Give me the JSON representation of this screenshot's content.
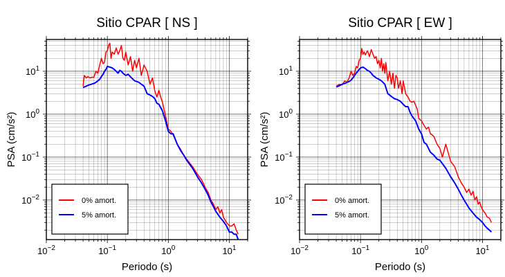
{
  "chart_data": [
    {
      "type": "line",
      "title": "Sitio CPAR [ NS ]",
      "xlabel": "Periodo (s)",
      "ylabel": "PSA (cm/s²)",
      "xscale": "log",
      "yscale": "log",
      "xlim": [
        0.01,
        20
      ],
      "ylim": [
        0.0012,
        55
      ],
      "grid": true,
      "legend_position": "bottom-left",
      "xticks": [
        {
          "value": 0.01,
          "base": "10",
          "exp": "−2"
        },
        {
          "value": 0.1,
          "base": "10",
          "exp": "−1"
        },
        {
          "value": 1,
          "base": "10",
          "exp": "0"
        },
        {
          "value": 10,
          "base": "10",
          "exp": "1"
        }
      ],
      "yticks": [
        {
          "value": 0.01,
          "base": "10",
          "exp": "−2"
        },
        {
          "value": 0.1,
          "base": "10",
          "exp": "−1"
        },
        {
          "value": 1,
          "base": "10",
          "exp": "0"
        },
        {
          "value": 10,
          "base": "10",
          "exp": "1"
        }
      ],
      "series": [
        {
          "name": "0% amort.",
          "color": "#ff0000",
          "x": [
            0.04,
            0.042,
            0.045,
            0.048,
            0.052,
            0.056,
            0.06,
            0.065,
            0.07,
            0.075,
            0.08,
            0.085,
            0.09,
            0.095,
            0.1,
            0.105,
            0.11,
            0.115,
            0.12,
            0.13,
            0.14,
            0.15,
            0.16,
            0.17,
            0.18,
            0.19,
            0.2,
            0.22,
            0.24,
            0.26,
            0.28,
            0.3,
            0.33,
            0.36,
            0.4,
            0.45,
            0.5,
            0.55,
            0.6,
            0.65,
            0.7,
            0.75,
            0.8,
            0.85,
            0.9,
            1.0,
            1.1,
            1.2,
            1.4,
            1.6,
            1.8,
            2.0,
            2.5,
            3.0,
            3.5,
            4.0,
            4.5,
            5.0,
            5.5,
            6.0,
            6.5,
            7.0,
            7.5,
            8.0,
            9.0,
            10.0,
            11.0,
            12.0,
            13.0,
            14.0
          ],
          "y": [
            4.5,
            8,
            7,
            7.5,
            7,
            7.3,
            7.2,
            10,
            9,
            14,
            20,
            15,
            16,
            28,
            30,
            40,
            45,
            20,
            28,
            25,
            35,
            25,
            30,
            40,
            20,
            18,
            28,
            14,
            22,
            10,
            18,
            12,
            20,
            8,
            14,
            10,
            5,
            7,
            3.5,
            2.5,
            3.6,
            2.5,
            1.9,
            1.3,
            0.9,
            0.45,
            0.4,
            0.33,
            0.2,
            0.15,
            0.11,
            0.09,
            0.06,
            0.04,
            0.03,
            0.02,
            0.015,
            0.01,
            0.008,
            0.006,
            0.007,
            0.005,
            0.006,
            0.004,
            0.003,
            0.0025,
            0.0025,
            0.0028,
            0.002,
            0.0016
          ]
        },
        {
          "name": "5% amort.",
          "color": "#0000ff",
          "x": [
            0.04,
            0.045,
            0.05,
            0.055,
            0.06,
            0.065,
            0.07,
            0.075,
            0.08,
            0.085,
            0.09,
            0.095,
            0.1,
            0.11,
            0.12,
            0.13,
            0.14,
            0.15,
            0.16,
            0.17,
            0.18,
            0.2,
            0.22,
            0.25,
            0.28,
            0.3,
            0.33,
            0.36,
            0.4,
            0.45,
            0.5,
            0.55,
            0.6,
            0.65,
            0.7,
            0.8,
            0.9,
            1.0,
            1.1,
            1.2,
            1.4,
            1.6,
            1.8,
            2.0,
            2.5,
            3.0,
            3.5,
            4.0,
            4.5,
            5.0,
            5.5,
            6.0,
            7.0,
            8.0,
            9.0,
            10.0,
            11.0,
            12.0,
            13.0,
            14.0
          ],
          "y": [
            4.2,
            4.5,
            4.8,
            5,
            5.2,
            5.5,
            6,
            6.5,
            7.5,
            8.5,
            10,
            11,
            13,
            12.5,
            12,
            11,
            10,
            9,
            10.5,
            10,
            9,
            8,
            8.5,
            7,
            6,
            5.8,
            5.5,
            5,
            4.5,
            3,
            2.8,
            2.6,
            2.3,
            1.8,
            1.7,
            1.2,
            0.7,
            0.4,
            0.35,
            0.35,
            0.2,
            0.14,
            0.11,
            0.085,
            0.055,
            0.035,
            0.025,
            0.018,
            0.013,
            0.009,
            0.007,
            0.0055,
            0.004,
            0.0032,
            0.0025,
            0.0018,
            0.0018,
            0.0016,
            0.0016,
            0.0012
          ]
        }
      ]
    },
    {
      "type": "line",
      "title": "Sitio CPAR [ EW ]",
      "xlabel": "Periodo (s)",
      "ylabel": "PSA (cm/s²)",
      "xscale": "log",
      "yscale": "log",
      "xlim": [
        0.01,
        20
      ],
      "ylim": [
        0.0012,
        55
      ],
      "grid": true,
      "legend_position": "bottom-left",
      "xticks": [
        {
          "value": 0.01,
          "base": "10",
          "exp": "−2"
        },
        {
          "value": 0.1,
          "base": "10",
          "exp": "−1"
        },
        {
          "value": 1,
          "base": "10",
          "exp": "0"
        },
        {
          "value": 10,
          "base": "10",
          "exp": "1"
        }
      ],
      "yticks": [
        {
          "value": 0.01,
          "base": "10",
          "exp": "−2"
        },
        {
          "value": 0.1,
          "base": "10",
          "exp": "−1"
        },
        {
          "value": 1,
          "base": "10",
          "exp": "0"
        },
        {
          "value": 10,
          "base": "10",
          "exp": "1"
        }
      ],
      "series": [
        {
          "name": "0% amort.",
          "color": "#ff0000",
          "x": [
            0.04,
            0.045,
            0.05,
            0.055,
            0.06,
            0.065,
            0.07,
            0.075,
            0.08,
            0.085,
            0.09,
            0.095,
            0.1,
            0.105,
            0.11,
            0.115,
            0.12,
            0.13,
            0.14,
            0.15,
            0.16,
            0.17,
            0.18,
            0.19,
            0.2,
            0.21,
            0.22,
            0.23,
            0.24,
            0.25,
            0.26,
            0.28,
            0.3,
            0.32,
            0.34,
            0.36,
            0.38,
            0.4,
            0.42,
            0.45,
            0.48,
            0.5,
            0.55,
            0.6,
            0.65,
            0.7,
            0.75,
            0.8,
            0.85,
            0.9,
            1.0,
            1.1,
            1.2,
            1.3,
            1.4,
            1.5,
            1.6,
            1.8,
            2.0,
            2.2,
            2.5,
            3.0,
            3.5,
            4.0,
            4.5,
            5.0,
            5.5,
            6.0,
            6.5,
            7.0,
            7.5,
            8.0,
            8.5,
            9.0,
            9.5,
            10.0,
            11.0,
            12.0,
            13.0,
            14.0
          ],
          "y": [
            4.5,
            5,
            4.8,
            6,
            5.5,
            7,
            10,
            8,
            9,
            13,
            12,
            18,
            20,
            34,
            25,
            28,
            24,
            30,
            22,
            32,
            25,
            20,
            22,
            15,
            18,
            12,
            20,
            10,
            15,
            9,
            16,
            6,
            10,
            5,
            9,
            4,
            8,
            7,
            4,
            6,
            3,
            6,
            3,
            2.5,
            2,
            1.9,
            2,
            1.6,
            1.3,
            0.8,
            0.7,
            0.55,
            0.45,
            0.5,
            0.35,
            0.33,
            0.3,
            0.2,
            0.16,
            0.1,
            0.2,
            0.08,
            0.06,
            0.035,
            0.025,
            0.02,
            0.015,
            0.018,
            0.013,
            0.016,
            0.01,
            0.012,
            0.008,
            0.009,
            0.007,
            0.006,
            0.005,
            0.004,
            0.0038,
            0.003
          ]
        },
        {
          "name": "5% amort.",
          "color": "#0000ff",
          "x": [
            0.04,
            0.045,
            0.05,
            0.055,
            0.06,
            0.065,
            0.07,
            0.075,
            0.08,
            0.085,
            0.09,
            0.095,
            0.1,
            0.11,
            0.12,
            0.13,
            0.14,
            0.15,
            0.16,
            0.17,
            0.18,
            0.2,
            0.22,
            0.25,
            0.28,
            0.3,
            0.33,
            0.36,
            0.4,
            0.45,
            0.5,
            0.55,
            0.6,
            0.65,
            0.7,
            0.8,
            0.9,
            1.0,
            1.1,
            1.2,
            1.4,
            1.6,
            1.8,
            2.0,
            2.5,
            3.0,
            3.5,
            4.0,
            4.5,
            5.0,
            5.5,
            6.0,
            7.0,
            8.0,
            9.0,
            10.0,
            11.0,
            12.0,
            13.0,
            14.0
          ],
          "y": [
            4.3,
            4.6,
            5,
            5.2,
            5.5,
            5.8,
            6.2,
            7,
            8,
            9,
            10,
            11,
            12,
            12.5,
            11.5,
            10.5,
            10,
            9,
            8,
            7.5,
            7,
            6.5,
            6,
            5,
            3,
            2.8,
            2.5,
            2.3,
            2.2,
            2.0,
            1.7,
            1.5,
            1.5,
            1.1,
            0.9,
            0.7,
            0.45,
            0.35,
            0.22,
            0.2,
            0.13,
            0.11,
            0.09,
            0.085,
            0.055,
            0.035,
            0.025,
            0.018,
            0.013,
            0.01,
            0.008,
            0.0065,
            0.005,
            0.004,
            0.0035,
            0.003,
            0.0025,
            0.0022,
            0.002,
            0.0018
          ]
        }
      ]
    }
  ]
}
